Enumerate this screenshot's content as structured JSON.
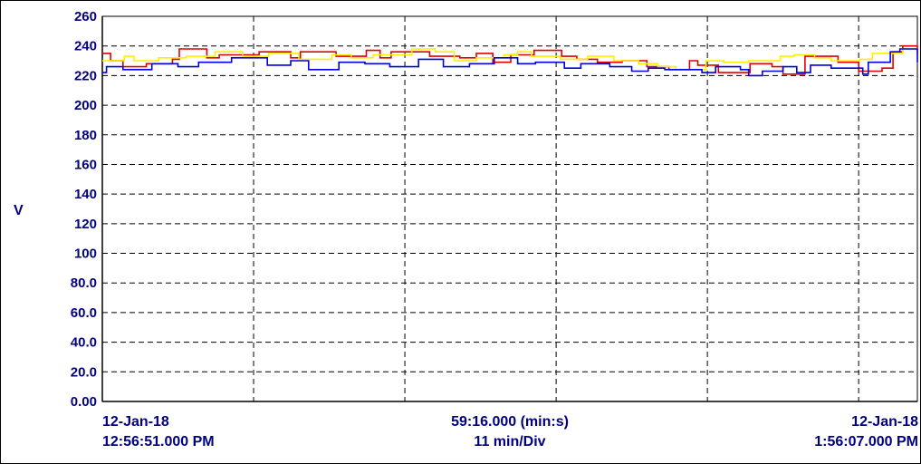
{
  "chart_data": {
    "type": "line",
    "ylabel": "V",
    "ylim": [
      0,
      260
    ],
    "y_ticks": [
      "0.00",
      "20.0",
      "40.0",
      "60.0",
      "80.0",
      "100",
      "120",
      "140",
      "160",
      "180",
      "200",
      "220",
      "240",
      "260"
    ],
    "x_range_min": [
      0,
      59.27
    ],
    "grid": "dashed",
    "x_start": {
      "date": "12-Jan-18",
      "time": "12:56:51.000 PM"
    },
    "x_end": {
      "date": "12-Jan-18",
      "time": "1:56:07.000 PM"
    },
    "x_span": "59:16.000 (min:s)",
    "x_division": "11 min/Div",
    "series": [
      {
        "color": "#e00000",
        "x": [
          0,
          0.6,
          1.5,
          3.2,
          5.1,
          5.6,
          7.6,
          8.5,
          11.4,
          13.7,
          14.4,
          17.0,
          19.2,
          20.2,
          21.0,
          23.8,
          26.0,
          27.2,
          28.4,
          29.7,
          31.4,
          33.4,
          34.5,
          36.0,
          37.8,
          39.6,
          41.2,
          42.7,
          43.3,
          44.8,
          47.1,
          48.7,
          49.5,
          51.1,
          53.5,
          55.0,
          56.7,
          57.5,
          58.2,
          59.27
        ],
        "values": [
          235,
          230,
          226,
          228,
          231,
          238,
          232,
          234,
          236,
          232,
          236,
          233,
          237,
          232,
          236,
          233,
          232,
          235,
          229,
          234,
          237,
          233,
          231,
          229,
          230,
          226,
          224,
          230,
          227,
          222,
          228,
          226,
          221,
          233,
          229,
          223,
          225,
          236,
          240,
          234
        ]
      },
      {
        "color": "#ffee00",
        "x": [
          0,
          1.6,
          2.3,
          4.1,
          6.1,
          8.2,
          10.2,
          12.1,
          14.3,
          16.7,
          18.1,
          19.7,
          22.5,
          24.2,
          25.6,
          27.2,
          29.2,
          30.2,
          31.2,
          33.3,
          35.3,
          37.2,
          39.0,
          40.4,
          41.7,
          43.9,
          45.2,
          47.0,
          49.3,
          50.3,
          51.8,
          53.0,
          55.1,
          56.0,
          58.2,
          59.27
        ],
        "values": [
          230,
          233,
          230,
          232,
          233,
          236,
          233,
          235,
          231,
          234,
          232,
          234,
          238,
          236,
          230,
          232,
          234,
          236,
          233,
          231,
          233,
          230,
          228,
          226,
          224,
          230,
          229,
          230,
          233,
          234,
          232,
          230,
          231,
          235,
          238,
          234
        ]
      },
      {
        "color": "#0000dd",
        "x": [
          0,
          0.3,
          1.5,
          3.6,
          5.5,
          7.0,
          9.4,
          12.0,
          13.7,
          15.0,
          17.2,
          19.1,
          20.9,
          23.0,
          24.8,
          26.7,
          28.5,
          30.2,
          31.5,
          33.6,
          34.8,
          36.9,
          38.5,
          39.7,
          40.9,
          43.6,
          44.6,
          46.4,
          47.0,
          48.0,
          49.5,
          50.5,
          51.5,
          53.0,
          55.3,
          55.7,
          57.3,
          58.0,
          59.27
        ],
        "values": [
          222,
          226,
          224,
          228,
          226,
          229,
          232,
          227,
          230,
          224,
          229,
          228,
          226,
          231,
          226,
          228,
          232,
          228,
          229,
          225,
          228,
          226,
          223,
          225,
          224,
          222,
          226,
          224,
          220,
          223,
          226,
          222,
          227,
          225,
          221,
          229,
          236,
          238,
          229
        ]
      }
    ]
  }
}
